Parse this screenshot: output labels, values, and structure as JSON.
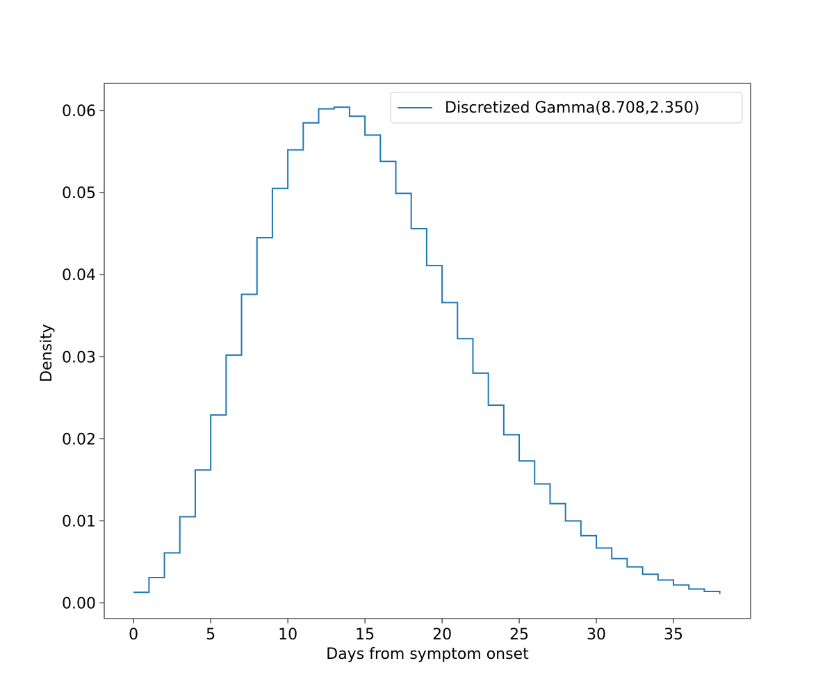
{
  "chart_data": {
    "type": "line",
    "drawstyle": "steps-post",
    "title": "",
    "xlabel": "Days from symptom onset",
    "ylabel": "Density",
    "xlim": [
      -1.9,
      40
    ],
    "ylim": [
      -0.0019,
      0.0633
    ],
    "xticks": [
      0,
      5,
      10,
      15,
      20,
      25,
      30,
      35
    ],
    "xtick_labels": [
      "0",
      "5",
      "10",
      "15",
      "20",
      "25",
      "30",
      "35"
    ],
    "yticks": [
      0.0,
      0.01,
      0.02,
      0.03,
      0.04,
      0.05,
      0.06
    ],
    "ytick_labels": [
      "0.00",
      "0.01",
      "0.02",
      "0.03",
      "0.04",
      "0.05",
      "0.06"
    ],
    "grid": false,
    "legend_position": "top-right",
    "series": [
      {
        "name": "Discretized Gamma(8.708,2.350)",
        "color": "#1f77b4",
        "x": [
          0,
          1,
          2,
          3,
          4,
          5,
          6,
          7,
          8,
          9,
          10,
          11,
          12,
          13,
          14,
          15,
          16,
          17,
          18,
          19,
          20,
          21,
          22,
          23,
          24,
          25,
          26,
          27,
          28,
          29,
          30,
          31,
          32,
          33,
          34,
          35,
          36,
          37,
          38
        ],
        "values": [
          0.0013,
          0.0031,
          0.0061,
          0.0105,
          0.0162,
          0.0229,
          0.0302,
          0.0376,
          0.0445,
          0.0505,
          0.0552,
          0.0585,
          0.0602,
          0.0604,
          0.0593,
          0.057,
          0.0538,
          0.0499,
          0.0456,
          0.0411,
          0.0366,
          0.0322,
          0.028,
          0.0241,
          0.0205,
          0.0173,
          0.0145,
          0.0121,
          0.01,
          0.0082,
          0.0067,
          0.0054,
          0.0044,
          0.0035,
          0.0028,
          0.0022,
          0.0017,
          0.0014,
          0.0011
        ]
      }
    ]
  }
}
